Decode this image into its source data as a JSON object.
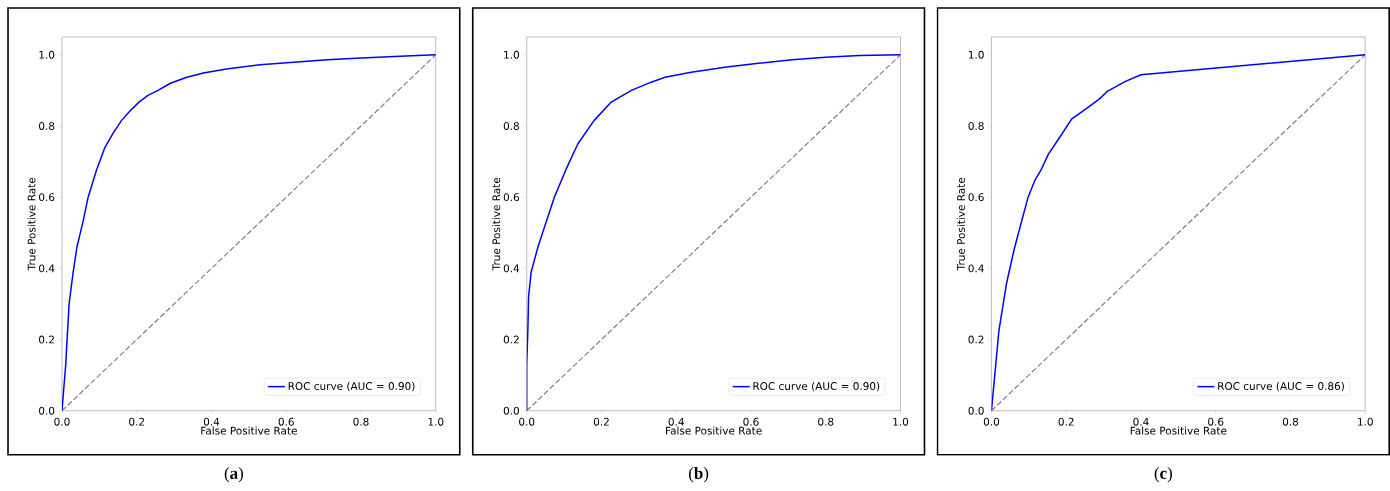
{
  "chart_data": [
    {
      "type": "line",
      "xlabel": "False Positive Rate",
      "ylabel": "True Positive Rate",
      "annotations": [
        "(**a**)"
      ],
      "xlim": [
        0,
        1
      ],
      "ylim": [
        0,
        1.05
      ],
      "xticks": [
        {
          "value": 0,
          "label": "0.0"
        },
        {
          "value": 0.2,
          "label": "0.2"
        },
        {
          "value": 0.4,
          "label": "0.4"
        },
        {
          "value": 0.6,
          "label": "0.6"
        },
        {
          "value": 0.8,
          "label": "0.8"
        },
        {
          "value": 1,
          "label": "1.0"
        }
      ],
      "yticks": [
        {
          "value": 0,
          "label": "0.0"
        },
        {
          "value": 0.2,
          "label": "0.2"
        },
        {
          "value": 0.4,
          "label": "0.4"
        },
        {
          "value": 0.6,
          "label": "0.6"
        },
        {
          "value": 0.8,
          "label": "0.8"
        },
        {
          "value": 1,
          "label": "1.0"
        }
      ],
      "legend": "bottom right",
      "series": [
        {
          "name": "ROC curve (AUC = 0.90)",
          "color": "#0000ff",
          "line_style": "solid",
          "x": [
            0,
            0.01,
            0.019,
            0.03,
            0.04,
            0.056,
            0.07,
            0.092,
            0.115,
            0.137,
            0.159,
            0.18,
            0.206,
            0.23,
            0.257,
            0.29,
            0.334,
            0.378,
            0.44,
            0.53,
            0.62,
            0.71,
            0.8,
            0.89,
            1
          ],
          "values": [
            0,
            0.13,
            0.3,
            0.39,
            0.46,
            0.53,
            0.6,
            0.675,
            0.74,
            0.78,
            0.815,
            0.84,
            0.867,
            0.886,
            0.9,
            0.92,
            0.937,
            0.949,
            0.96,
            0.972,
            0.979,
            0.986,
            0.991,
            0.995,
            1
          ]
        },
        {
          "type": "line",
          "color": "#808080",
          "line_style": "dashed",
          "x": [
            0,
            1
          ],
          "values": [
            0,
            1
          ]
        }
      ]
    },
    {
      "type": "line",
      "xlabel": "False Positive Rate",
      "ylabel": "True Positive Rate",
      "annotations": [
        "(**b**)"
      ],
      "xlim": [
        0,
        1
      ],
      "ylim": [
        0,
        1.05
      ],
      "xticks": [
        {
          "value": 0,
          "label": "0.0"
        },
        {
          "value": 0.2,
          "label": "0.2"
        },
        {
          "value": 0.4,
          "label": "0.4"
        },
        {
          "value": 0.6,
          "label": "0.6"
        },
        {
          "value": 0.8,
          "label": "0.8"
        },
        {
          "value": 1,
          "label": "1.0"
        }
      ],
      "yticks": [
        {
          "value": 0,
          "label": "0.0"
        },
        {
          "value": 0.2,
          "label": "0.2"
        },
        {
          "value": 0.4,
          "label": "0.4"
        },
        {
          "value": 0.6,
          "label": "0.6"
        },
        {
          "value": 0.8,
          "label": "0.8"
        },
        {
          "value": 1,
          "label": "1.0"
        }
      ],
      "legend": "bottom right",
      "series": [
        {
          "name": "ROC curve (AUC = 0.90)",
          "color": "#0000ff",
          "line_style": "solid",
          "x": [
            0,
            0,
            0.003,
            0.005,
            0.012,
            0.03,
            0.052,
            0.074,
            0.106,
            0.137,
            0.18,
            0.226,
            0.28,
            0.333,
            0.37,
            0.44,
            0.53,
            0.62,
            0.71,
            0.8,
            0.89,
            1
          ],
          "values": [
            0,
            0.13,
            0.225,
            0.32,
            0.39,
            0.46,
            0.53,
            0.6,
            0.68,
            0.75,
            0.815,
            0.867,
            0.9,
            0.923,
            0.937,
            0.951,
            0.965,
            0.976,
            0.986,
            0.993,
            0.998,
            1
          ]
        },
        {
          "type": "line",
          "color": "#808080",
          "line_style": "dashed",
          "x": [
            0,
            1
          ],
          "values": [
            0,
            1
          ]
        }
      ]
    },
    {
      "type": "line",
      "xlabel": "False Positive Rate",
      "ylabel": "True Positive Rate",
      "annotations": [
        "(**c**)"
      ],
      "xlim": [
        0,
        1
      ],
      "ylim": [
        0,
        1.05
      ],
      "xticks": [
        {
          "value": 0,
          "label": "0.0"
        },
        {
          "value": 0.2,
          "label": "0.2"
        },
        {
          "value": 0.4,
          "label": "0.4"
        },
        {
          "value": 0.6,
          "label": "0.6"
        },
        {
          "value": 0.8,
          "label": "0.8"
        },
        {
          "value": 1,
          "label": "1.0"
        }
      ],
      "yticks": [
        {
          "value": 0,
          "label": "0.0"
        },
        {
          "value": 0.2,
          "label": "0.2"
        },
        {
          "value": 0.4,
          "label": "0.4"
        },
        {
          "value": 0.6,
          "label": "0.6"
        },
        {
          "value": 0.8,
          "label": "0.8"
        },
        {
          "value": 1,
          "label": "1.0"
        }
      ],
      "legend": "bottom right",
      "series": [
        {
          "name": "ROC curve (AUC = 0.86)",
          "color": "#0000ff",
          "line_style": "solid",
          "x": [
            0,
            0.02,
            0.04,
            0.06,
            0.07,
            0.098,
            0.116,
            0.132,
            0.152,
            0.18,
            0.215,
            0.253,
            0.289,
            0.311,
            0.36,
            0.4,
            1
          ],
          "values": [
            0,
            0.225,
            0.356,
            0.45,
            0.49,
            0.6,
            0.647,
            0.675,
            0.72,
            0.764,
            0.82,
            0.848,
            0.876,
            0.898,
            0.926,
            0.944,
            1
          ]
        },
        {
          "type": "line",
          "color": "#808080",
          "line_style": "dashed",
          "x": [
            0,
            1
          ],
          "values": [
            0,
            1
          ]
        }
      ]
    }
  ]
}
